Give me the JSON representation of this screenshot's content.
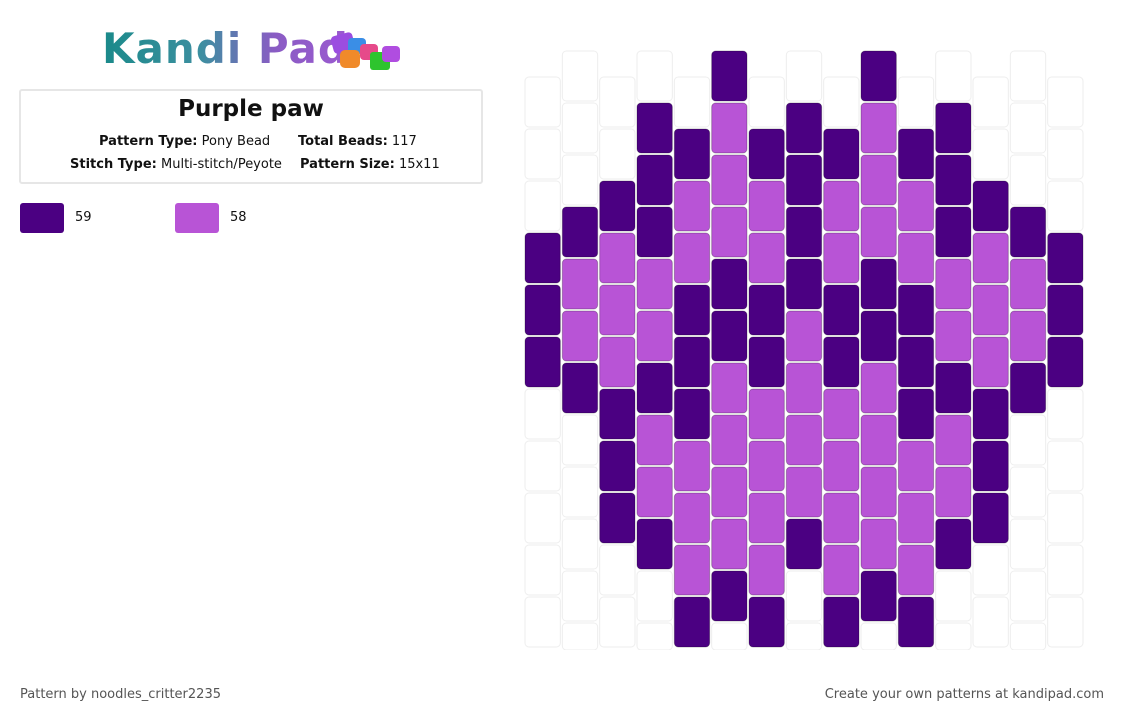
{
  "header": {
    "logo": "Kandi Pad"
  },
  "pattern": {
    "title": "Purple paw",
    "details": [
      {
        "label": "Pattern Type:",
        "value": "Pony Bead"
      },
      {
        "label": "Total Beads:",
        "value": "117"
      },
      {
        "label": "Stitch Type:",
        "value": "Multi-stitch/Peyote"
      },
      {
        "label": "Pattern Size:",
        "value": "15x11"
      }
    ],
    "colors": [
      {
        "color": "#4b0082",
        "count": 59
      },
      {
        "color": "#b854d6",
        "count": 58
      }
    ]
  },
  "footer": {
    "author": "Pattern by noodles_critter2235",
    "promo": "Create your own patterns at kandipad.com"
  }
}
